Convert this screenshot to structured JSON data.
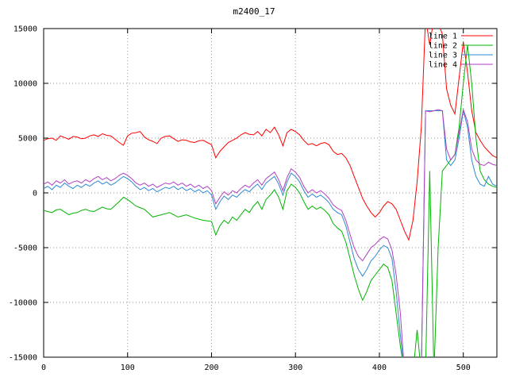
{
  "title": "m2400_17",
  "colors": {
    "background": "#ffffff",
    "border": "#000000",
    "grid": "#9a9a9a",
    "text": "#000000"
  },
  "chart_data": {
    "type": "line",
    "title": "m2400_17",
    "xlabel": "",
    "ylabel": "",
    "xlim": [
      0,
      540
    ],
    "ylim": [
      -15000,
      15000
    ],
    "x_ticks": [
      0,
      100,
      200,
      300,
      400,
      500
    ],
    "y_ticks": [
      -15000,
      -10000,
      -5000,
      0,
      5000,
      10000,
      15000
    ],
    "grid": true,
    "legend_position": "top-right",
    "x_start": 0,
    "x_step": 5,
    "series": [
      {
        "name": "line 1",
        "color": "#ff0000",
        "values": [
          4800,
          4950,
          5000,
          4800,
          5200,
          5050,
          4900,
          5150,
          5100,
          4950,
          5000,
          5200,
          5300,
          5150,
          5400,
          5250,
          5200,
          4900,
          4600,
          4350,
          5200,
          5450,
          5500,
          5600,
          5100,
          4850,
          4700,
          4500,
          5000,
          5150,
          5200,
          4950,
          4700,
          4850,
          4800,
          4650,
          4600,
          4750,
          4800,
          4600,
          4400,
          3200,
          3800,
          4200,
          4600,
          4800,
          5000,
          5300,
          5500,
          5350,
          5300,
          5600,
          5200,
          5800,
          5500,
          6000,
          5300,
          4300,
          5500,
          5800,
          5600,
          5300,
          4800,
          4400,
          4500,
          4300,
          4500,
          4600,
          4400,
          3800,
          3500,
          3600,
          3200,
          2500,
          1500,
          500,
          -500,
          -1200,
          -1800,
          -2200,
          -1800,
          -1200,
          -800,
          -1000,
          -1500,
          -2500,
          -3500,
          -4300,
          -2500,
          1000,
          6000,
          16000,
          13500,
          16000,
          15500,
          14500,
          9500,
          8000,
          7200,
          10500,
          13800,
          11000,
          7500,
          5500,
          4800,
          4200,
          3800,
          3400,
          3200
        ]
      },
      {
        "name": "line 2",
        "color": "#00b400",
        "values": [
          -1600,
          -1700,
          -1800,
          -1550,
          -1500,
          -1750,
          -2000,
          -1850,
          -1800,
          -1600,
          -1500,
          -1650,
          -1700,
          -1500,
          -1300,
          -1450,
          -1500,
          -1150,
          -800,
          -400,
          -600,
          -900,
          -1200,
          -1350,
          -1500,
          -1850,
          -2200,
          -2100,
          -2000,
          -1900,
          -1800,
          -2000,
          -2200,
          -2100,
          -2000,
          -2150,
          -2300,
          -2400,
          -2500,
          -2550,
          -2600,
          -3850,
          -3000,
          -2500,
          -2800,
          -2200,
          -2500,
          -2000,
          -1500,
          -1800,
          -1200,
          -800,
          -1500,
          -600,
          -200,
          300,
          -400,
          -1500,
          200,
          800,
          500,
          0,
          -800,
          -1500,
          -1200,
          -1500,
          -1300,
          -1600,
          -2000,
          -2800,
          -3200,
          -3500,
          -4500,
          -6000,
          -7500,
          -8800,
          -9800,
          -9000,
          -8000,
          -7500,
          -7000,
          -6500,
          -6800,
          -8000,
          -11000,
          -14000,
          -16500,
          -16500,
          -16500,
          -12500,
          -16500,
          -16500,
          2000,
          -16500,
          -5000,
          2000,
          2500,
          3000,
          3500,
          6000,
          10000,
          13500,
          10000,
          5000,
          2000,
          1200,
          800,
          600,
          500
        ]
      },
      {
        "name": "line 3",
        "color": "#2e8bd0",
        "values": [
          400,
          600,
          300,
          700,
          500,
          900,
          600,
          400,
          700,
          500,
          800,
          600,
          900,
          1100,
          800,
          1000,
          700,
          900,
          1200,
          1500,
          1300,
          1000,
          600,
          300,
          500,
          200,
          400,
          100,
          300,
          500,
          400,
          600,
          300,
          500,
          200,
          400,
          100,
          300,
          0,
          200,
          -200,
          -1500,
          -800,
          -300,
          -600,
          -200,
          -400,
          0,
          300,
          100,
          500,
          800,
          300,
          900,
          1200,
          1500,
          800,
          -200,
          1000,
          1800,
          1500,
          1000,
          200,
          -400,
          -100,
          -400,
          -200,
          -500,
          -900,
          -1500,
          -1800,
          -2000,
          -3000,
          -4500,
          -6000,
          -7000,
          -7600,
          -7000,
          -6200,
          -5800,
          -5200,
          -4800,
          -5000,
          -6000,
          -9000,
          -13000,
          -16500,
          -16500,
          -16500,
          -16500,
          -16500,
          7500,
          7500,
          7500,
          7500,
          7500,
          3000,
          2500,
          3000,
          5000,
          7500,
          6000,
          3000,
          1500,
          800,
          600,
          1500,
          800,
          600
        ]
      },
      {
        "name": "line 4",
        "color": "#b040c0",
        "values": [
          800,
          1000,
          700,
          1100,
          900,
          1200,
          800,
          1000,
          1100,
          900,
          1200,
          1000,
          1300,
          1500,
          1200,
          1400,
          1100,
          1300,
          1600,
          1800,
          1600,
          1300,
          900,
          700,
          900,
          600,
          800,
          500,
          700,
          900,
          800,
          1000,
          700,
          900,
          600,
          800,
          500,
          700,
          400,
          600,
          200,
          -1000,
          -400,
          100,
          -200,
          200,
          0,
          400,
          700,
          500,
          900,
          1200,
          700,
          1300,
          1600,
          1900,
          1200,
          200,
          1400,
          2200,
          1900,
          1400,
          600,
          0,
          300,
          0,
          200,
          -100,
          -500,
          -1100,
          -1400,
          -1600,
          -2500,
          -3800,
          -5000,
          -5800,
          -6200,
          -5600,
          -5000,
          -4700,
          -4300,
          -4000,
          -4200,
          -5200,
          -7500,
          -11000,
          -16500,
          -16500,
          -16500,
          -16500,
          -16500,
          7500,
          7400,
          7500,
          7600,
          7500,
          4000,
          3000,
          3500,
          5500,
          7600,
          6500,
          4000,
          3000,
          2600,
          2500,
          2800,
          2600,
          2500
        ]
      }
    ]
  }
}
